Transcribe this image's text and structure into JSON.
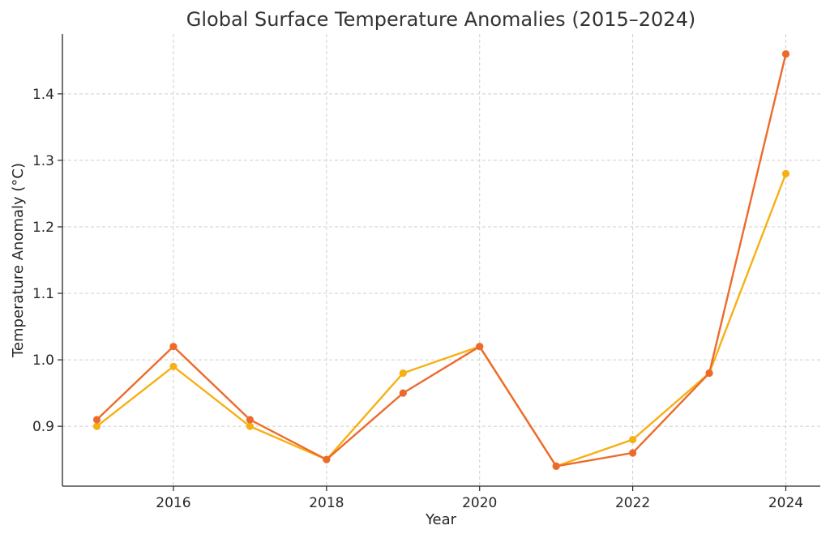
{
  "chart_data": {
    "type": "line",
    "title": "Global Surface Temperature Anomalies (2015–2024)",
    "xlabel": "Year",
    "ylabel": "Temperature Anomaly (°C)",
    "x": [
      2015,
      2016,
      2017,
      2018,
      2019,
      2020,
      2021,
      2022,
      2023,
      2024
    ],
    "xlim": [
      2014.55,
      2024.45
    ],
    "ylim": [
      0.81,
      1.49
    ],
    "x_ticks": [
      2016,
      2018,
      2020,
      2022,
      2024
    ],
    "y_ticks": [
      0.9,
      1.0,
      1.1,
      1.2,
      1.3,
      1.4
    ],
    "x_tick_labels": [
      "2016",
      "2018",
      "2020",
      "2022",
      "2024"
    ],
    "y_tick_labels": [
      "0.9",
      "1.0",
      "1.1",
      "1.2",
      "1.3",
      "1.4"
    ],
    "grid": true,
    "series": [
      {
        "values": [
          0.9,
          0.99,
          0.9,
          0.85,
          0.98,
          1.02,
          0.84,
          0.88,
          0.98,
          1.28
        ],
        "color": "#f7b014"
      },
      {
        "values": [
          0.91,
          1.02,
          0.91,
          0.85,
          0.95,
          1.02,
          0.84,
          0.86,
          0.98,
          1.46
        ],
        "color": "#ec6b2c"
      }
    ]
  }
}
